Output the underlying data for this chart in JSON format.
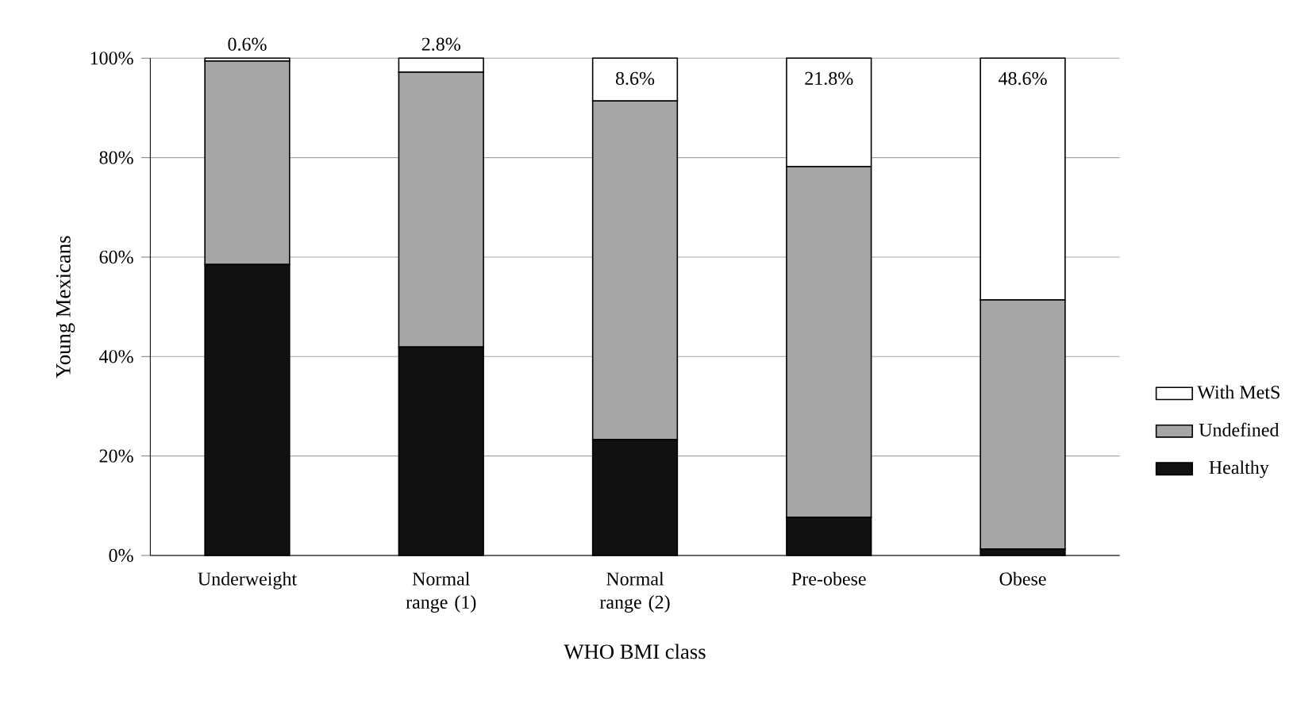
{
  "chart_data": {
    "type": "bar",
    "stacked": true,
    "xlabel": "WHO BMI class",
    "ylabel": "Young Mexicans",
    "categories": [
      "Underweight",
      "Normal range (1)",
      "Normal range (2)",
      "Pre-obese",
      "Obese"
    ],
    "series": [
      {
        "name": "Healthy",
        "color": "#111111",
        "values": [
          58.5,
          41.9,
          23.3,
          7.7,
          1.3
        ]
      },
      {
        "name": "Undefined",
        "color": "#a6a6a6",
        "values": [
          40.9,
          55.3,
          68.1,
          70.5,
          50.1
        ]
      },
      {
        "name": "With MetS",
        "color": "#ffffff",
        "values": [
          0.6,
          2.8,
          8.6,
          21.8,
          48.6
        ],
        "value_labels": [
          "0.6%",
          "2.8%",
          "8.6%",
          "21.8%",
          "48.6%"
        ]
      }
    ],
    "ylim": [
      0,
      100
    ],
    "yticks": [
      {
        "value": 0,
        "label": "0%"
      },
      {
        "value": 20,
        "label": "20%"
      },
      {
        "value": 40,
        "label": "40%"
      },
      {
        "value": 60,
        "label": "60%"
      },
      {
        "value": 80,
        "label": "80%"
      },
      {
        "value": 100,
        "label": "100%"
      }
    ],
    "grid": "y",
    "legend": "right"
  }
}
